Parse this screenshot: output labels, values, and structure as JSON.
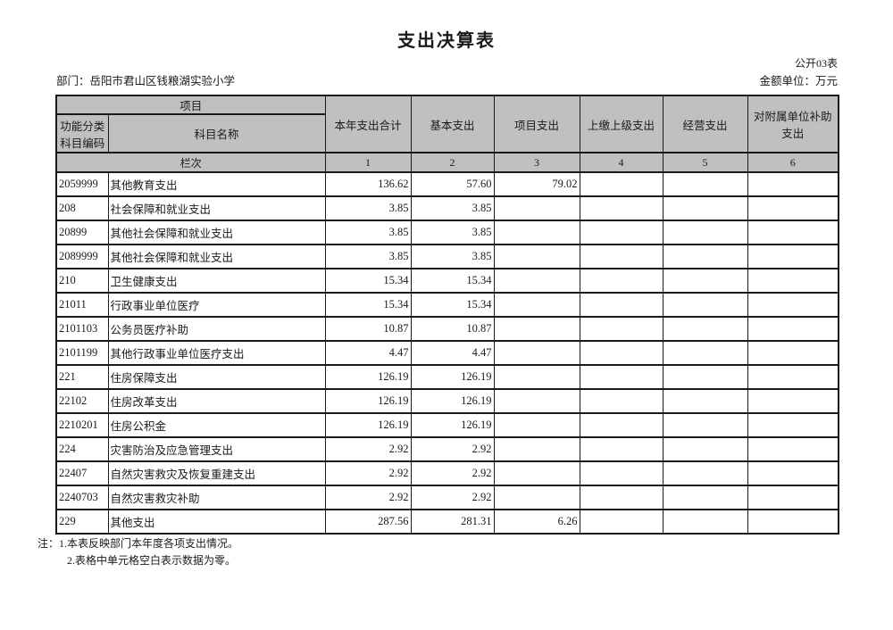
{
  "page": {
    "title": "支出决算表",
    "table_code": "公开03表",
    "department": "部门：岳阳市君山区钱粮湖实验小学",
    "unit": "金额单位：万元"
  },
  "table": {
    "header": {
      "project_group": "项目",
      "code_label": "功能分类科目编码",
      "name_label": "科目名称",
      "value_cols": [
        "本年支出合计",
        "基本支出",
        "项目支出",
        "上缴上级支出",
        "经营支出",
        "对附属单位补助支出"
      ],
      "rank_label": "栏次",
      "col_nums": [
        "1",
        "2",
        "3",
        "4",
        "5",
        "6"
      ]
    },
    "rows": [
      {
        "code": "2059999",
        "name": "其他教育支出",
        "values": [
          "136.62",
          "57.60",
          "79.02",
          "",
          "",
          ""
        ]
      },
      {
        "code": "208",
        "name": "社会保障和就业支出",
        "values": [
          "3.85",
          "3.85",
          "",
          "",
          "",
          ""
        ]
      },
      {
        "code": "20899",
        "name": "其他社会保障和就业支出",
        "values": [
          "3.85",
          "3.85",
          "",
          "",
          "",
          ""
        ]
      },
      {
        "code": "2089999",
        "name": "其他社会保障和就业支出",
        "values": [
          "3.85",
          "3.85",
          "",
          "",
          "",
          ""
        ]
      },
      {
        "code": "210",
        "name": "卫生健康支出",
        "values": [
          "15.34",
          "15.34",
          "",
          "",
          "",
          ""
        ]
      },
      {
        "code": "21011",
        "name": "行政事业单位医疗",
        "values": [
          "15.34",
          "15.34",
          "",
          "",
          "",
          ""
        ]
      },
      {
        "code": "2101103",
        "name": "公务员医疗补助",
        "values": [
          "10.87",
          "10.87",
          "",
          "",
          "",
          ""
        ]
      },
      {
        "code": "2101199",
        "name": "其他行政事业单位医疗支出",
        "values": [
          "4.47",
          "4.47",
          "",
          "",
          "",
          ""
        ]
      },
      {
        "code": "221",
        "name": "住房保障支出",
        "values": [
          "126.19",
          "126.19",
          "",
          "",
          "",
          ""
        ]
      },
      {
        "code": "22102",
        "name": "住房改革支出",
        "values": [
          "126.19",
          "126.19",
          "",
          "",
          "",
          ""
        ]
      },
      {
        "code": "2210201",
        "name": "住房公积金",
        "values": [
          "126.19",
          "126.19",
          "",
          "",
          "",
          ""
        ]
      },
      {
        "code": "224",
        "name": "灾害防治及应急管理支出",
        "values": [
          "2.92",
          "2.92",
          "",
          "",
          "",
          ""
        ]
      },
      {
        "code": "22407",
        "name": "自然灾害救灾及恢复重建支出",
        "values": [
          "2.92",
          "2.92",
          "",
          "",
          "",
          ""
        ]
      },
      {
        "code": "2240703",
        "name": "自然灾害救灾补助",
        "values": [
          "2.92",
          "2.92",
          "",
          "",
          "",
          ""
        ]
      },
      {
        "code": "229",
        "name": "其他支出",
        "values": [
          "287.56",
          "281.31",
          "6.26",
          "",
          "",
          ""
        ]
      }
    ]
  },
  "notes": [
    "注：1.本表反映部门本年度各项支出情况。",
    "2.表格中单元格空白表示数据为零。"
  ],
  "colors": {
    "header_bg": "#c0c0c0",
    "border": "#1a1a1a",
    "text": "#1a1a1a"
  }
}
